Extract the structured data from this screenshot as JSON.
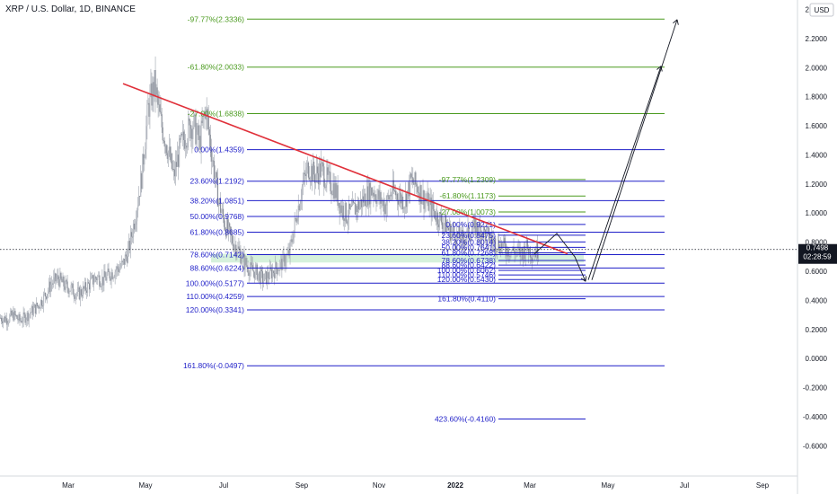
{
  "header": {
    "title": "XRP / U.S. Dollar, 1D, BINANCE",
    "currency": "USD",
    "price": "0.7498",
    "countdown": "02:28:59"
  },
  "colors": {
    "fib_blue": "#1e1ec8",
    "fib_green": "#4a9a1e",
    "trendline": "#e0303a",
    "candles": "#9ea3ad",
    "zone": "#c8ecd0",
    "price_badge": "#131722"
  },
  "chart_data": {
    "type": "candlestick",
    "title": "XRP / U.S. Dollar, 1D, BINANCE",
    "ylim": [
      -0.7,
      2.4
    ],
    "y_ticks": [
      "2.4000",
      "2.2000",
      "2.0000",
      "1.8000",
      "1.6000",
      "1.4000",
      "1.2000",
      "1.0000",
      "0.8000",
      "0.6000",
      "0.4000",
      "0.2000",
      "0.0000",
      "-0.2000",
      "-0.4000",
      "-0.6000"
    ],
    "x_ticks": [
      "Mar",
      "May",
      "Jul",
      "Sep",
      "Nov",
      "2022",
      "Mar",
      "May",
      "Jul",
      "Sep"
    ],
    "last_price": 0.7498,
    "fib_primary": [
      {
        "label": "0.00%(1.4359)",
        "value": 1.4359,
        "color": "blue"
      },
      {
        "label": "23.60%(1.2192)",
        "value": 1.2192,
        "color": "blue"
      },
      {
        "label": "38.20%(1.0851)",
        "value": 1.0851,
        "color": "blue"
      },
      {
        "label": "50.00%(0.9768)",
        "value": 0.9768,
        "color": "blue"
      },
      {
        "label": "61.80%(0.8685)",
        "value": 0.8685,
        "color": "blue"
      },
      {
        "label": "78.60%(0.7142)",
        "value": 0.7142,
        "color": "blue"
      },
      {
        "label": "88.60%(0.6224)",
        "value": 0.6224,
        "color": "blue"
      },
      {
        "label": "100.00%(0.5177)",
        "value": 0.5177,
        "color": "blue"
      },
      {
        "label": "110.00%(0.4259)",
        "value": 0.4259,
        "color": "blue"
      },
      {
        "label": "120.00%(0.3341)",
        "value": 0.3341,
        "color": "blue"
      },
      {
        "label": "161.80%(-0.0497)",
        "value": -0.0497,
        "color": "blue"
      },
      {
        "label": "-27.00%(1.6838)",
        "value": 1.6838,
        "color": "green"
      },
      {
        "label": "-61.80%(2.0033)",
        "value": 2.0033,
        "color": "green"
      },
      {
        "label": "-97.77%(2.3336)",
        "value": 2.3336,
        "color": "green"
      }
    ],
    "fib_secondary": [
      {
        "label": "-97.77%(1.2309)",
        "value": 1.2309,
        "color": "green"
      },
      {
        "label": "-61.80%(1.1173)",
        "value": 1.1173,
        "color": "green"
      },
      {
        "label": "-27.00%(1.0073)",
        "value": 1.0073,
        "color": "green"
      },
      {
        "label": "0.00%(0.9221)",
        "value": 0.9221,
        "color": "blue"
      },
      {
        "label": "23.60%(0.8475)",
        "value": 0.8475,
        "color": "blue"
      },
      {
        "label": "38.20%(0.8014)",
        "value": 0.8014,
        "color": "blue"
      },
      {
        "label": "50.00%(0.7641)",
        "value": 0.7641,
        "color": "blue"
      },
      {
        "label": "61.80%(0.7268)",
        "value": 0.7268,
        "color": "blue"
      },
      {
        "label": "78.60%(0.6738)",
        "value": 0.6738,
        "color": "blue"
      },
      {
        "label": "88.60%(0.6422)",
        "value": 0.6422,
        "color": "blue"
      },
      {
        "label": "100.00%(0.6062)",
        "value": 0.6062,
        "color": "blue"
      },
      {
        "label": "110.00%(0.5746)",
        "value": 0.5746,
        "color": "blue"
      },
      {
        "label": "120.00%(0.5430)",
        "value": 0.543,
        "color": "blue"
      },
      {
        "label": "161.80%(0.4110)",
        "value": 0.411,
        "color": "blue"
      }
    ],
    "fib_extension": [
      {
        "label": "423.60%(-0.4160)",
        "value": -0.416,
        "color": "blue"
      }
    ],
    "trendline": {
      "from": 1.89,
      "to": 0.72
    },
    "price_path": [
      0.28,
      0.27,
      0.3,
      0.26,
      0.29,
      0.33,
      0.37,
      0.44,
      0.52,
      0.55,
      0.5,
      0.48,
      0.44,
      0.47,
      0.52,
      0.56,
      0.54,
      0.58,
      0.61,
      0.64,
      0.75,
      0.98,
      1.25,
      1.72,
      1.88,
      1.62,
      1.45,
      1.25,
      1.45,
      1.55,
      1.62,
      1.48,
      1.72,
      1.38,
      1.08,
      0.92,
      0.82,
      0.75,
      0.66,
      0.61,
      0.59,
      0.54,
      0.58,
      0.62,
      0.66,
      0.72,
      0.95,
      1.18,
      1.32,
      1.26,
      1.3,
      1.22,
      1.18,
      1.05,
      0.98,
      1.02,
      1.06,
      1.12,
      1.16,
      1.1,
      1.05,
      1.15,
      1.12,
      1.08,
      1.22,
      1.18,
      1.1,
      1.05,
      0.98,
      0.94,
      0.88,
      0.85,
      0.82,
      0.86,
      0.9,
      0.88,
      0.84,
      0.8,
      0.78,
      0.75,
      0.74,
      0.72,
      0.76,
      0.73,
      0.75
    ]
  }
}
